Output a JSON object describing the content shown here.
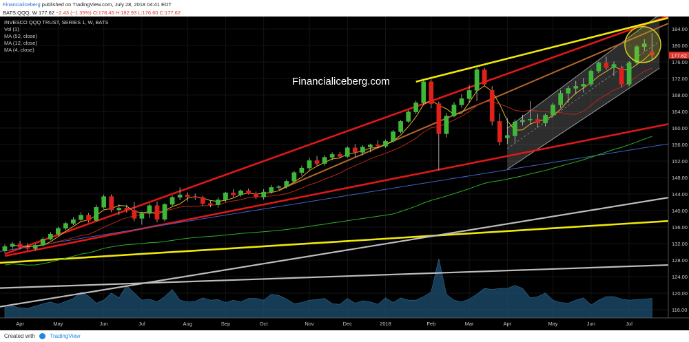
{
  "header": {
    "publisher": "Financialiceberg",
    "published_text": "published on TradingView.com, July 28, 2018 04:41 EDT",
    "symbol_line_prefix": "BATS:QQQ, W",
    "symbol_line_price": "177.62",
    "symbol_line_change": "−2.43 (−1.35%)",
    "symbol_line_ohlc": "O:178.45 H:182.93 L:176.60 C:177.62"
  },
  "legend": {
    "title": "INVESCO QQQ TRUST, SERIES 1, W, BATS",
    "items": [
      "Vol (1)",
      "MA (52, close)",
      "MA (12, close)",
      "MA (4, close)"
    ]
  },
  "watermark": "Financialiceberg.com",
  "footer": {
    "created_with": "Created with",
    "brand": "TradingView"
  },
  "colors": {
    "background": "#000000",
    "up": "#3fb83a",
    "down": "#e0211b",
    "trend_red": "#e01818",
    "trend_yellow": "#f1e80a",
    "trend_gray": "#bdbdbd",
    "volume": "#1e4f72",
    "ma4": "#e8b52a",
    "ma12": "#b8261e",
    "ma52": "#2fb02b",
    "trend_blue": "#3f66c8",
    "price_label": "#e0362c"
  },
  "chart_data": {
    "type": "candlestick",
    "title": "INVESCO QQQ TRUST, SERIES 1, W, BATS",
    "ylim": [
      114,
      186
    ],
    "y_ticks": [
      116,
      120,
      124,
      128,
      132,
      136,
      140,
      144,
      148,
      152,
      156,
      160,
      164,
      168,
      172,
      176,
      180,
      184
    ],
    "x_tick_labels": [
      "Apr",
      "May",
      "Jun",
      "Jul",
      "Aug",
      "Sep",
      "Oct",
      "Nov",
      "Dec",
      "2018",
      "Feb",
      "Mar",
      "Apr",
      "May",
      "Jun",
      "Jul"
    ],
    "last_price_label": "177.62",
    "candles": [
      [
        130.2,
        131.8,
        129.8,
        131.3
      ],
      [
        131.3,
        132.4,
        130.7,
        131.9
      ],
      [
        131.9,
        132.7,
        130.6,
        131.1
      ],
      [
        131.1,
        132.1,
        130.2,
        130.8
      ],
      [
        130.8,
        131.9,
        130.3,
        131.6
      ],
      [
        131.6,
        133.6,
        131.3,
        133.1
      ],
      [
        133.1,
        134.8,
        132.8,
        134.3
      ],
      [
        134.3,
        136.1,
        133.9,
        135.7
      ],
      [
        135.7,
        137.3,
        135.3,
        136.9
      ],
      [
        136.9,
        138.4,
        136.5,
        137.8
      ],
      [
        137.8,
        139.6,
        137.2,
        138.9
      ],
      [
        138.9,
        139.4,
        137.1,
        137.6
      ],
      [
        137.6,
        141.4,
        137.3,
        140.8
      ],
      [
        140.8,
        143.9,
        140.4,
        143.4
      ],
      [
        143.4,
        143.9,
        139.6,
        140.2
      ],
      [
        140.2,
        141.6,
        138.9,
        140.6
      ],
      [
        140.6,
        141.4,
        139.5,
        140.1
      ],
      [
        140.1,
        142.1,
        137.4,
        138.1
      ],
      [
        138.1,
        139.7,
        136.6,
        139.3
      ],
      [
        139.3,
        141.7,
        138.2,
        141.2
      ],
      [
        141.2,
        142.2,
        137.2,
        137.9
      ],
      [
        137.9,
        141.8,
        137.4,
        141.5
      ],
      [
        141.5,
        143.6,
        141.1,
        143.2
      ],
      [
        143.2,
        145.6,
        142.5,
        143.8
      ],
      [
        143.8,
        144.4,
        142.2,
        143.4
      ],
      [
        143.4,
        144.1,
        142.6,
        143.2
      ],
      [
        143.2,
        143.6,
        141.1,
        141.7
      ],
      [
        141.7,
        142.4,
        140.8,
        141.4
      ],
      [
        141.4,
        143.2,
        140.7,
        142.6
      ],
      [
        142.6,
        144.5,
        142.1,
        144.3
      ],
      [
        144.3,
        145.2,
        143.2,
        143.8
      ],
      [
        143.8,
        145.1,
        143.4,
        144.8
      ],
      [
        144.8,
        145.3,
        143.9,
        144.1
      ],
      [
        144.1,
        144.6,
        142.8,
        143.3
      ],
      [
        143.3,
        145.2,
        142.7,
        144.5
      ],
      [
        144.5,
        146.2,
        144.1,
        145.6
      ],
      [
        145.6,
        146.1,
        145.1,
        145.8
      ],
      [
        145.8,
        147.5,
        145.3,
        147.1
      ],
      [
        147.1,
        149.6,
        146.8,
        149.2
      ],
      [
        149.2,
        150.9,
        148.5,
        150.3
      ],
      [
        150.3,
        152.8,
        149.7,
        152.1
      ],
      [
        152.1,
        153.2,
        150.9,
        151.4
      ],
      [
        151.4,
        153.4,
        150.9,
        152.9
      ],
      [
        152.9,
        154.1,
        152.2,
        153.6
      ],
      [
        153.6,
        154.2,
        152.6,
        153.1
      ],
      [
        153.1,
        155.6,
        152.8,
        155.2
      ],
      [
        155.2,
        156.1,
        152.9,
        154.1
      ],
      [
        154.1,
        155.8,
        153.4,
        155.4
      ],
      [
        155.4,
        156.2,
        154.1,
        155.9
      ],
      [
        155.9,
        157.1,
        155.1,
        155.6
      ],
      [
        155.6,
        157.2,
        155.2,
        156.8
      ],
      [
        156.8,
        159.5,
        156.5,
        159.1
      ],
      [
        159.1,
        161.9,
        158.7,
        161.6
      ],
      [
        161.6,
        164.3,
        161.2,
        163.9
      ],
      [
        163.9,
        166.6,
        163.4,
        166.1
      ],
      [
        166.1,
        171.6,
        165.6,
        171.2
      ],
      [
        171.2,
        171.8,
        164.8,
        165.9
      ],
      [
        165.9,
        166.4,
        149.8,
        158.6
      ],
      [
        158.6,
        163.6,
        157.7,
        162.9
      ],
      [
        162.9,
        166.3,
        162.6,
        165.6
      ],
      [
        165.6,
        168.2,
        164.9,
        167.1
      ],
      [
        167.1,
        170.4,
        166.1,
        169.1
      ],
      [
        169.1,
        174.5,
        166.5,
        174.1
      ],
      [
        174.1,
        174.6,
        170.2,
        170.6
      ],
      [
        169.1,
        170.1,
        160.6,
        161.6
      ],
      [
        161.6,
        163.6,
        155.8,
        156.6
      ],
      [
        157.6,
        162.4,
        156.1,
        158.2
      ],
      [
        158.1,
        162.1,
        156.5,
        161.5
      ],
      [
        161.5,
        163.2,
        160.6,
        161.9
      ],
      [
        161.9,
        166.5,
        160.8,
        162.1
      ],
      [
        162.1,
        163.4,
        160.1,
        161.2
      ],
      [
        161.2,
        163.5,
        160.4,
        163.1
      ],
      [
        163.1,
        166.1,
        162.8,
        165.6
      ],
      [
        165.6,
        169.1,
        164.9,
        168.4
      ],
      [
        168.4,
        170.2,
        166.1,
        169.6
      ],
      [
        169.6,
        171.4,
        168.2,
        170.1
      ],
      [
        170.1,
        172.1,
        168.6,
        170.6
      ],
      [
        170.6,
        174.2,
        170.1,
        173.8
      ],
      [
        173.8,
        176.1,
        173.3,
        175.8
      ],
      [
        175.8,
        177.3,
        174.1,
        174.6
      ],
      [
        174.6,
        176.1,
        172.6,
        175.4
      ],
      [
        174.5,
        175.1,
        169.9,
        170.6
      ],
      [
        170.6,
        176.2,
        170.1,
        175.8
      ],
      [
        175.8,
        180.1,
        175.3,
        179.7
      ],
      [
        179.7,
        181.5,
        178.6,
        180.4
      ],
      [
        178.45,
        182.93,
        176.6,
        177.62
      ]
    ],
    "volume": [
      0.18,
      0.2,
      0.17,
      0.16,
      0.2,
      0.24,
      0.27,
      0.23,
      0.28,
      0.33,
      0.44,
      0.37,
      0.25,
      0.3,
      0.42,
      0.34,
      0.55,
      0.42,
      0.3,
      0.32,
      0.27,
      0.36,
      0.48,
      0.3,
      0.27,
      0.28,
      0.34,
      0.3,
      0.31,
      0.26,
      0.3,
      0.27,
      0.33,
      0.33,
      0.3,
      0.4,
      0.38,
      0.32,
      0.24,
      0.26,
      0.3,
      0.31,
      0.33,
      0.24,
      0.23,
      0.33,
      0.25,
      0.29,
      0.27,
      0.23,
      0.34,
      0.26,
      0.34,
      0.3,
      0.3,
      0.36,
      0.44,
      1.0,
      0.4,
      0.3,
      0.27,
      0.32,
      0.4,
      0.5,
      0.48,
      0.5,
      0.5,
      0.55,
      0.5,
      0.34,
      0.36,
      0.42,
      0.3,
      0.26,
      0.25,
      0.3,
      0.34,
      0.22,
      0.3,
      0.36,
      0.36,
      0.32,
      0.3,
      0.31,
      0.32,
      0.33
    ],
    "trendlines": [
      {
        "color": "trend_red",
        "from": [
          0,
          129.5
        ],
        "to": [
          90,
          189
        ]
      },
      {
        "color": "trend_red",
        "from": [
          0,
          129.0
        ],
        "to": [
          90,
          162
        ]
      },
      {
        "color": "trend_yellow",
        "from": [
          54,
          171.2
        ],
        "to": [
          90,
          188
        ]
      },
      {
        "color": "trend_yellow",
        "from": [
          -1,
          127.3
        ],
        "to": [
          90,
          137.8
        ]
      },
      {
        "color": "trend_gray",
        "from": [
          -1,
          116.6
        ],
        "to": [
          90,
          144
        ]
      },
      {
        "color": "trend_gray",
        "from": [
          -1,
          121.2
        ],
        "to": [
          90,
          127
        ]
      },
      {
        "color": "trend_blue",
        "from": [
          -1,
          130
        ],
        "to": [
          90,
          157
        ]
      }
    ]
  }
}
